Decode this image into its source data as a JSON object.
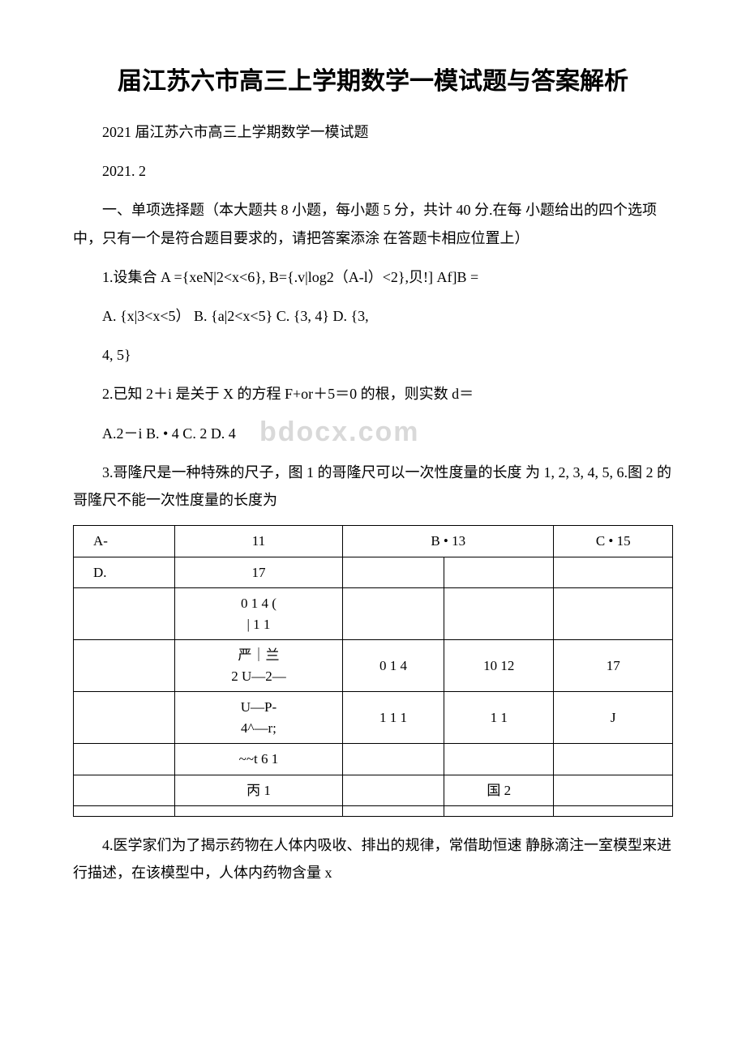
{
  "title": "届江苏六市高三上学期数学一模试题与答案解析",
  "line1": "2021 届江苏六市高三上学期数学一模试题",
  "line2": "2021. 2",
  "section1": "一、单项选择题（本大题共 8 小题，每小题 5 分，共计 40 分.在每 小题给出的四个选项中，只有一个是符合题目要求的，请把答案添涂 在答题卡相应位置上）",
  "q1": "1.设集合 A ={xeN|2<x<6}, B={.v|log2（A-l）<2},贝!] Af]B =",
  "q1a": "A. {x|3<x<5）  B. {a|2<x<5} C. {3, 4} D. {3,",
  "q1b": "4, 5}",
  "q2": "2.已知 2＋i 是关于 X 的方程 F+or＋5＝0 的根，则实数 d＝",
  "q2a": "A.2－i B. • 4 C. 2 D. 4",
  "q3": "3.哥隆尺是一种特殊的尺子，图 1 的哥隆尺可以一次性度量的长度 为 1, 2, 3, 4, 5, 6.图 2 的哥隆尺不能一次性度量的长度为",
  "table": {
    "rows": [
      [
        "A-",
        "11",
        "B • 13",
        "",
        "C • 15"
      ],
      [
        "D.",
        "17",
        "",
        "",
        ""
      ],
      [
        "",
        "0 1 4 (\n| 1 1",
        "",
        "",
        ""
      ],
      [
        "",
        "严｜兰\n2 U—2—",
        "0 1 4",
        "10 12",
        "17"
      ],
      [
        "",
        "U—P-\n4^—r;",
        "1 1 1",
        "1 1",
        "J"
      ],
      [
        "",
        "~~t 6  1",
        "",
        "",
        ""
      ],
      [
        "",
        "丙 1",
        "",
        "国 2",
        ""
      ],
      [
        "",
        "",
        "",
        "",
        ""
      ]
    ],
    "colspan_r0c2": 2,
    "first_col_align": "left"
  },
  "q4": "4.医学家们为了揭示药物在人体内吸收、排出的规律，常借助恒速 静脉滴注一室模型来进行描述，在该模型中，人体内药物含量 x",
  "watermark": "bdocx.com",
  "colors": {
    "text": "#000000",
    "background": "#ffffff",
    "watermark": "#d9d9d9",
    "border": "#000000"
  },
  "fonts": {
    "title_size": 30,
    "body_size": 18,
    "table_size": 17,
    "watermark_size": 34
  }
}
